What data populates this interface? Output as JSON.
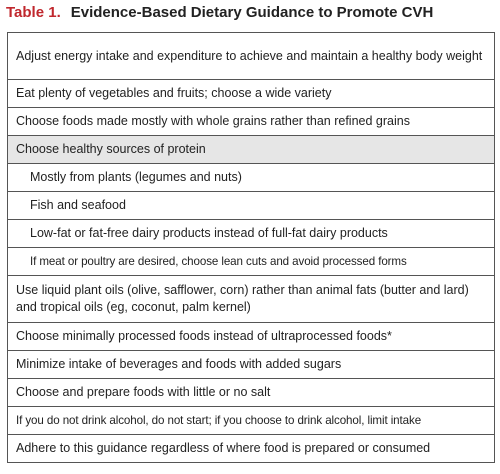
{
  "header": {
    "label": "Table 1.",
    "title": "Evidence-Based Dietary Guidance to Promote CVH"
  },
  "table": {
    "rows": [
      "Adjust energy intake and expenditure to achieve and maintain a healthy body weight",
      "Eat plenty of vegetables and fruits; choose a wide variety",
      "Choose foods made mostly with whole grains rather than refined grains",
      "Choose healthy sources of protein",
      "Mostly from plants (legumes and nuts)",
      "Fish and seafood",
      "Low-fat or fat-free dairy products instead of full-fat dairy products",
      "If meat or poultry are desired, choose lean cuts and avoid processed forms",
      "Use liquid plant oils (olive, safflower, corn) rather than animal fats (butter and lard) and tropical oils (eg, coconut, palm kernel)",
      "Choose minimally processed foods instead of ultraprocessed foods*",
      "Minimize intake of beverages and foods with added sugars",
      "Choose and prepare foods with little or no salt",
      "If you do not drink alcohol, do not start; if you choose to drink alcohol, limit intake",
      "Adhere to this guidance regardless of where food is prepared or consumed"
    ]
  }
}
